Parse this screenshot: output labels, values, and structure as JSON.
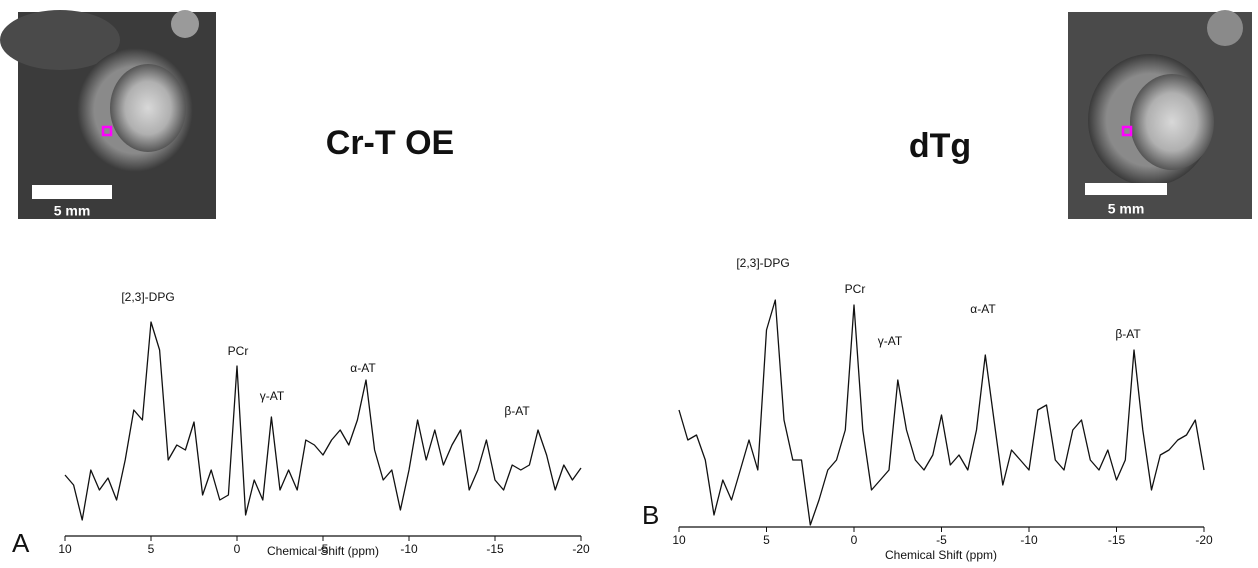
{
  "chart_data": [
    {
      "type": "line",
      "panel": "A",
      "title": "Cr-T OE",
      "scale_bar_label": "5 mm",
      "xlabel": "Chemical Shift (ppm)",
      "annotations": [
        "[2,3]-DPG",
        "PCr",
        "γ-AT",
        "α-AT",
        "β-AT"
      ],
      "xlim": [
        10,
        -20
      ],
      "xticks": [
        10,
        5,
        0,
        -5,
        -10,
        -15,
        -20
      ],
      "ylim": [
        0,
        250
      ],
      "x": [
        10,
        9.5,
        9,
        8.5,
        8,
        7.5,
        7,
        6.5,
        6,
        5.5,
        5,
        4.5,
        4,
        3.5,
        3,
        2.5,
        2,
        1.5,
        1,
        0.5,
        0,
        -0.5,
        -1,
        -1.5,
        -2,
        -2.5,
        -3,
        -3.5,
        -4,
        -4.5,
        -5,
        -5.5,
        -6,
        -6.5,
        -7,
        -7.5,
        -8,
        -8.5,
        -9,
        -9.5,
        -10,
        -10.5,
        -11,
        -11.5,
        -12,
        -12.5,
        -13,
        -13.5,
        -14,
        -14.5,
        -15,
        -15.5,
        -16,
        -16.5,
        -17,
        -17.5,
        -18,
        -18.5,
        -19,
        -19.5,
        -20
      ],
      "values": [
        61,
        51,
        16,
        66,
        46,
        58,
        36,
        76,
        126,
        116,
        214,
        186,
        76,
        91,
        86,
        114,
        41,
        66,
        36,
        41,
        170,
        21,
        56,
        36,
        119,
        46,
        66,
        46,
        96,
        91,
        81,
        96,
        106,
        91,
        116,
        156,
        86,
        56,
        66,
        26,
        66,
        116,
        76,
        106,
        71,
        91,
        106,
        46,
        66,
        96,
        56,
        46,
        71,
        66,
        71,
        106,
        81,
        46,
        71,
        56,
        68
      ],
      "color": "#111111"
    },
    {
      "type": "line",
      "panel": "B",
      "title": "dTg",
      "scale_bar_label": "5 mm",
      "xlabel": "Chemical Shift (ppm)",
      "annotations": [
        "[2,3]-DPG",
        "PCr",
        "γ-AT",
        "α-AT",
        "β-AT"
      ],
      "xlim": [
        10,
        -20
      ],
      "xticks": [
        10,
        5,
        0,
        -5,
        -10,
        -15,
        -20
      ],
      "ylim": [
        0,
        250
      ],
      "x": [
        10,
        9.5,
        9,
        8.5,
        8,
        7.5,
        7,
        6.5,
        6,
        5.5,
        5,
        4.5,
        4,
        3.5,
        3,
        2.5,
        2,
        1.5,
        1,
        0.5,
        0,
        -0.5,
        -1,
        -1.5,
        -2,
        -2.5,
        -3,
        -3.5,
        -4,
        -4.5,
        -5,
        -5.5,
        -6,
        -6.5,
        -7,
        -7.5,
        -8,
        -8.5,
        -9,
        -9.5,
        -10,
        -10.5,
        -11,
        -11.5,
        -12,
        -12.5,
        -13,
        -13.5,
        -14,
        -14.5,
        -15,
        -15.5,
        -16,
        -16.5,
        -17,
        -17.5,
        -18,
        -18.5,
        -19,
        -19.5,
        -20
      ],
      "values": [
        117,
        87,
        92,
        67,
        12,
        47,
        27,
        57,
        87,
        57,
        197,
        227,
        107,
        67,
        67,
        2,
        27,
        57,
        67,
        97,
        222,
        97,
        37,
        47,
        57,
        147,
        97,
        67,
        57,
        72,
        112,
        62,
        72,
        57,
        97,
        172,
        107,
        42,
        77,
        67,
        57,
        117,
        122,
        67,
        57,
        97,
        107,
        67,
        57,
        77,
        47,
        67,
        177,
        97,
        37,
        72,
        77,
        87,
        92,
        107,
        57
      ],
      "color": "#111111"
    }
  ]
}
